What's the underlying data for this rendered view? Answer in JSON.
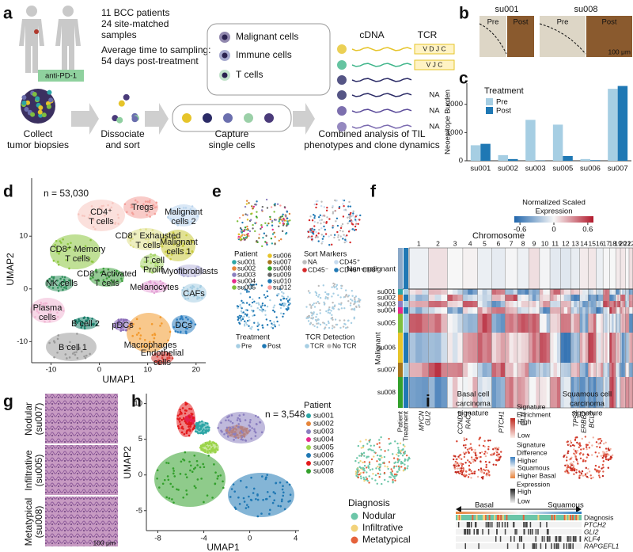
{
  "panels": {
    "a": {
      "label": "a",
      "intro": [
        "11 BCC patients",
        "24 site-matched",
        "samples",
        "Average time to sampling:",
        "54 days post-treatment"
      ],
      "drug": "anti-PD-1",
      "cells": [
        "Malignant cells",
        "Immune cells",
        "T cells"
      ],
      "cdna": "cDNA",
      "tcr": "TCR",
      "tcr_rows": [
        "V D J C",
        "V J C",
        "NA",
        "NA",
        "NA"
      ],
      "steps": [
        [
          "Collect",
          "tumor biopsies"
        ],
        [
          "Dissociate",
          "and sort"
        ],
        [
          "Capture",
          "single cells"
        ],
        [
          "Combined analysis of TIL",
          "phenotypes and clone dynamics"
        ]
      ]
    },
    "b": {
      "label": "b",
      "samples": [
        {
          "name": "su001",
          "pre": "Pre",
          "post": "Post"
        },
        {
          "name": "su008",
          "pre": "Pre",
          "post": "Post"
        }
      ],
      "scale": "100 μm"
    },
    "d": {
      "label": "d",
      "n": "n = 53,030",
      "xlabel": "UMAP1",
      "ylabel": "UMAP2",
      "xlim": [
        -14,
        22
      ],
      "ylim": [
        -14,
        21
      ],
      "xticks": [
        -10,
        0,
        10,
        20
      ],
      "yticks": [
        -10,
        0,
        10
      ],
      "clusters": [
        {
          "name": [
            "Tregs"
          ],
          "color": "#f4a09a"
        },
        {
          "name": [
            "CD4⁺",
            "T cells"
          ],
          "color": "#f7c6c0"
        },
        {
          "name": [
            "Malignant",
            "cells 2"
          ],
          "color": "#bcd6ee"
        },
        {
          "name": [
            "CD8⁺ Exhausted",
            "T cells"
          ],
          "color": "#dfe08a"
        },
        {
          "name": [
            "CD8⁺ Memory",
            "T cells"
          ],
          "color": "#8cc63f"
        },
        {
          "name": [
            "Malignant",
            "cells 1"
          ],
          "color": "#c8c93d"
        },
        {
          "name": [
            "T cell",
            "Prolif."
          ],
          "color": "#a9d66d"
        },
        {
          "name": [
            "CD8⁺ Activated",
            "T cells"
          ],
          "color": "#3c9e3c"
        },
        {
          "name": [
            "Myofibroblasts"
          ],
          "color": "#b9b8dc"
        },
        {
          "name": [
            "NK cells"
          ],
          "color": "#2f8f5b"
        },
        {
          "name": [
            "Melanocytes"
          ],
          "color": "#e3a3d6"
        },
        {
          "name": [
            "CAFs"
          ],
          "color": "#a6cee3"
        },
        {
          "name": [
            "Plasma",
            "cells"
          ],
          "color": "#f1b7d4"
        },
        {
          "name": [
            "B cell 2"
          ],
          "color": "#1b7f6b"
        },
        {
          "name": [
            "pDCs"
          ],
          "color": "#8a6bb8"
        },
        {
          "name": [
            "DCs"
          ],
          "color": "#2d7fc1"
        },
        {
          "name": [
            "B cell 1"
          ],
          "color": "#9a9a9a"
        },
        {
          "name": [
            "Macrophages"
          ],
          "color": "#f39a2e"
        },
        {
          "name": [
            "Endothelial",
            "cells"
          ],
          "color": "#d6413a"
        }
      ]
    },
    "e": {
      "label": "e",
      "patient": {
        "title": "Patient",
        "items": [
          {
            "name": "su001",
            "color": "#2ca5a5"
          },
          {
            "name": "su002",
            "color": "#e6853a"
          },
          {
            "name": "su003",
            "color": "#8b7fc0"
          },
          {
            "name": "su004",
            "color": "#e7298a"
          },
          {
            "name": "su005",
            "color": "#7fbf3f"
          },
          {
            "name": "su006",
            "color": "#e6c42a"
          },
          {
            "name": "su007",
            "color": "#a6761d"
          },
          {
            "name": "su008",
            "color": "#33a02c"
          },
          {
            "name": "su009",
            "color": "#666666"
          },
          {
            "name": "su010",
            "color": "#1f78b4"
          },
          {
            "name": "su012",
            "color": "#fb9a99"
          }
        ]
      },
      "sort": {
        "title": "Sort Markers",
        "items": [
          {
            "name": "NA",
            "color": "#bdbdbd"
          },
          {
            "name": "CD45⁺",
            "color": "#c6dbef"
          },
          {
            "name": "CD45⁻",
            "color": "#d62728"
          },
          {
            "name": "CD45⁺ CD3⁺",
            "color": "#1f78b4"
          }
        ]
      },
      "treatment": {
        "title": "Treatment",
        "items": [
          {
            "name": "Pre",
            "color": "#a6cee3"
          },
          {
            "name": "Post",
            "color": "#1f78b4"
          }
        ]
      },
      "tcr": {
        "title": "TCR Detection",
        "items": [
          {
            "name": "TCR",
            "color": "#a6cee3"
          },
          {
            "name": "No TCR",
            "color": "#bdbdbd"
          }
        ]
      }
    },
    "f": {
      "label": "f",
      "colorbar": {
        "title": [
          "Normalized Scaled",
          "Expression"
        ],
        "lim": [
          -0.7,
          0.7
        ],
        "ticks": [
          -0.6,
          0,
          0.6
        ]
      },
      "chromosome_title": "Chromosome",
      "chromosomes": [
        1,
        2,
        3,
        4,
        5,
        6,
        7,
        8,
        9,
        10,
        11,
        12,
        13,
        14,
        15,
        16,
        17,
        18,
        19,
        20,
        21,
        22
      ],
      "non_malignant": "Non-malignant",
      "malignant": "Malignant",
      "patients": [
        "su001",
        "su002",
        "su003",
        "su004",
        "su005",
        "su006",
        "su007",
        "su008"
      ],
      "annotations": [
        "Patient",
        "Treatment"
      ],
      "genes": [
        {
          "name": "MYCN",
          "color": "#c0282d"
        },
        {
          "name": "GLI2",
          "color": "#c0282d"
        },
        {
          "name": "CCND3",
          "color": "#c0282d"
        },
        {
          "name": "RAC1",
          "color": "#c0282d"
        },
        {
          "name": "PTCH1",
          "color": "#2a3f9c"
        },
        {
          "name": "GLI1",
          "color": "#c0282d"
        },
        {
          "name": "TP53",
          "color": "#2a3f9c"
        },
        {
          "name": "ERBB2",
          "color": "#c0282d"
        },
        {
          "name": "BCL2",
          "color": "#c0282d"
        }
      ]
    },
    "g": {
      "label": "g",
      "samples": [
        [
          "Nodular",
          "(su007)"
        ],
        [
          "Infiltrative",
          "(su005)"
        ],
        [
          "Metatypical",
          "(su008)"
        ]
      ],
      "scale": "100 μm"
    },
    "h": {
      "label": "h",
      "n": "n = 3,548",
      "xlabel": "UMAP1",
      "ylabel": "UMAP2",
      "xlim": [
        -9,
        4.3
      ],
      "ylim": [
        -7.8,
        11.4
      ],
      "xticks": [
        -8,
        -4,
        0,
        4
      ],
      "yticks": [
        -5,
        0,
        5,
        10
      ],
      "patient": {
        "title": "Patient",
        "items": [
          {
            "name": "su001",
            "color": "#2ca5a5"
          },
          {
            "name": "su002",
            "color": "#e6853a"
          },
          {
            "name": "su003",
            "color": "#8b7fc0"
          },
          {
            "name": "su004",
            "color": "#e7298a"
          },
          {
            "name": "su005",
            "color": "#9bd44a"
          },
          {
            "name": "su006",
            "color": "#1f78b4"
          },
          {
            "name": "su007",
            "color": "#e31a1c"
          },
          {
            "name": "su008",
            "color": "#33a02c"
          }
        ]
      },
      "diagnosis": {
        "title": "Diagnosis",
        "items": [
          {
            "name": "Nodular",
            "color": "#6cc6a8"
          },
          {
            "name": "Infiltrative",
            "color": "#f2d27a"
          },
          {
            "name": "Metatypical",
            "color": "#e5623b"
          }
        ]
      }
    },
    "i": {
      "label": "i",
      "basal_title": [
        "Basal cell",
        "carcinoma",
        "signature"
      ],
      "squamous_title": [
        "Squamous cell",
        "carcinoma",
        "signature"
      ],
      "enrichment": {
        "title": [
          "Signature",
          "Enrichment"
        ],
        "high": "High",
        "low": "Low"
      },
      "difference": {
        "title": [
          "Signature",
          "Difference"
        ],
        "squamous": [
          "Higher",
          "Squamous"
        ],
        "basal": "Higher Basal"
      },
      "expression": {
        "title": "Expression",
        "high": "High",
        "low": "Low"
      },
      "axis": [
        "Basal",
        "Squamous"
      ],
      "rows": [
        "Diagnosis",
        "PTCH2",
        "GLI2",
        "KLF4",
        "RAPGEFL1"
      ]
    }
  },
  "chart_data": {
    "type": "bar",
    "panel": "c",
    "ylabel": "Neoepitope Burden",
    "legend_title": "Treatment",
    "legend": "top-left",
    "categories": [
      "su001",
      "su002",
      "su003",
      "su005",
      "su006",
      "su007"
    ],
    "series": [
      {
        "name": "Pre",
        "color": "#a6cee3",
        "values": [
          550,
          200,
          1450,
          1280,
          60,
          2550
        ]
      },
      {
        "name": "Post",
        "color": "#1f78b4",
        "values": [
          600,
          60,
          10,
          170,
          20,
          2650
        ]
      }
    ],
    "ylim": [
      0,
      2750
    ],
    "yticks": [
      0,
      1000,
      2000
    ]
  }
}
